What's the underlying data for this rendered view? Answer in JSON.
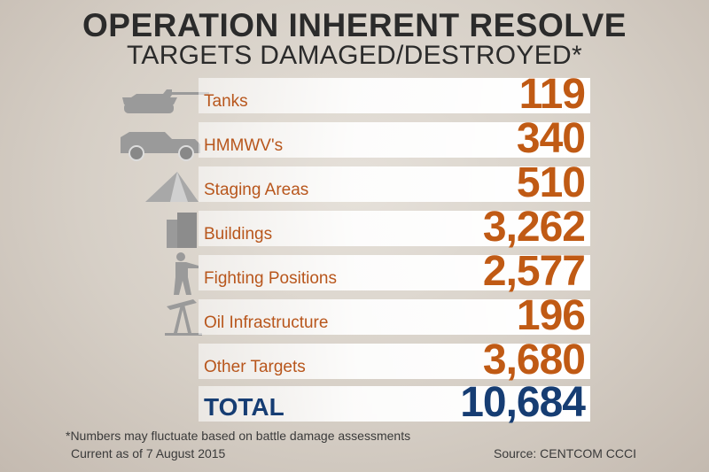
{
  "header": {
    "title": "OPERATION INHERENT RESOLVE",
    "subtitle": "TARGETS DAMAGED/DESTROYED*"
  },
  "rows": [
    {
      "label": "Tanks",
      "value": "119",
      "icon": "tank-icon"
    },
    {
      "label": "HMMWV's",
      "value": "340",
      "icon": "humvee-icon"
    },
    {
      "label": "Staging Areas",
      "value": "510",
      "icon": "tent-icon"
    },
    {
      "label": "Buildings",
      "value": "3,262",
      "icon": "building-icon"
    },
    {
      "label": "Fighting Positions",
      "value": "2,577",
      "icon": "soldier-icon"
    },
    {
      "label": "Oil Infrastructure",
      "value": "196",
      "icon": "oil-pump-icon"
    },
    {
      "label": "Other Targets",
      "value": "3,680",
      "icon": ""
    }
  ],
  "total": {
    "label": "TOTAL",
    "value": "10,684"
  },
  "footer": {
    "note": "*Numbers may fluctuate based on battle damage assessments",
    "date": "Current as of 7 August 2015",
    "source": "Source: CENTCOM CCCI"
  },
  "colors": {
    "value": "#c05a14",
    "total": "#163d73",
    "icon": "#9a9a9a"
  }
}
